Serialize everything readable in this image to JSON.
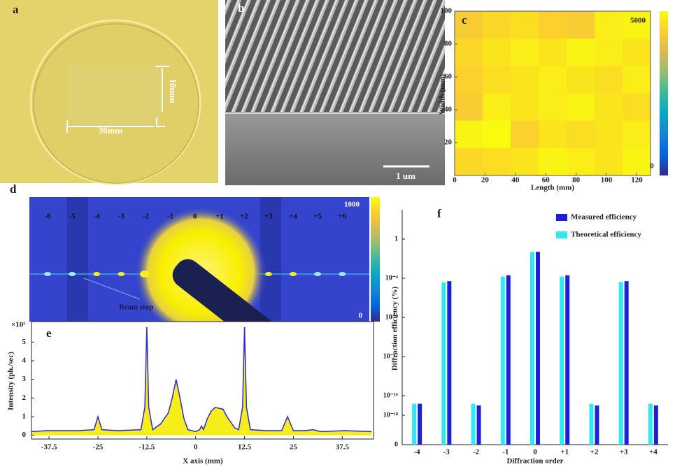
{
  "figure": {
    "a": {
      "label": "a",
      "width_label": "30mm",
      "height_label": "10mm"
    },
    "b": {
      "label": "b",
      "scale_label": "1 um"
    },
    "d": {
      "label": "d",
      "orders": [
        "-6",
        "-5",
        "-4",
        "-3",
        "-2",
        "-1",
        "0",
        "+1",
        "+2",
        "+3",
        "+4",
        "+5",
        "+6"
      ],
      "colorbar_max": "1000",
      "colorbar_min": "0",
      "annotation": "Beam stop"
    }
  },
  "chart_data": [
    {
      "type": "heatmap",
      "title": "c",
      "x_label": "Length (mm)",
      "y_label": "Width (mm)",
      "xlim": [
        0,
        129
      ],
      "ylim": [
        0,
        100
      ],
      "xticks": [
        0,
        20,
        40,
        60,
        80,
        100,
        120
      ],
      "yticks": [
        20,
        40,
        60,
        80,
        100
      ],
      "clim": [
        0,
        5000
      ],
      "colorscale": [
        "#352a87",
        "#0363e1",
        "#1485d4",
        "#06a7c6",
        "#38b99e",
        "#92bf73",
        "#d9ba56",
        "#fcce2e",
        "#f9fb0e"
      ],
      "values": [
        [
          4300,
          4500,
          4600,
          4400,
          4300,
          4800,
          4900
        ],
        [
          4500,
          4700,
          4800,
          4700,
          4900,
          4800,
          4700
        ],
        [
          4400,
          4600,
          4700,
          4800,
          4700,
          4600,
          4800
        ],
        [
          4300,
          4800,
          4700,
          4800,
          4900,
          4700,
          4600
        ],
        [
          4900,
          5000,
          4400,
          4700,
          4600,
          4700,
          4800
        ],
        [
          4500,
          4600,
          4700,
          4900,
          4800,
          4700,
          4900
        ]
      ]
    },
    {
      "type": "area",
      "title": "e",
      "x_label": "X axis (mm)",
      "y_label": "Intensity (ph./sec)",
      "y_multiplier": "×10⁵",
      "xlim": [
        -42,
        45.5
      ],
      "ylim": [
        -0.2,
        6.1
      ],
      "xticks": [
        -37.5,
        -25,
        -12.5,
        0,
        12.5,
        25,
        37.5
      ],
      "yticks": [
        0,
        1,
        2,
        3,
        4,
        5
      ],
      "color": "#2b2bd0",
      "fill_color": "#f5ee1a",
      "x": [
        -42,
        -38,
        -30,
        -26,
        -25,
        -24,
        -20,
        -14,
        -13,
        -12.5,
        -12,
        -11,
        -9,
        -7,
        -6,
        -5,
        -4,
        -3,
        -2,
        -1,
        0,
        1,
        1.5,
        2,
        3,
        4,
        5,
        6,
        7,
        8,
        9,
        10,
        11,
        12,
        12.5,
        13,
        14,
        18,
        22,
        23.5,
        25,
        28,
        30,
        32,
        38,
        45
      ],
      "values": [
        0.2,
        0.25,
        0.25,
        0.3,
        1.0,
        0.3,
        0.25,
        0.3,
        1.5,
        5.8,
        1.5,
        0.3,
        0.6,
        1.2,
        2.0,
        3.0,
        2.0,
        0.9,
        0.3,
        0.25,
        0.2,
        0.3,
        0.5,
        0.3,
        0.9,
        1.3,
        1.5,
        1.45,
        1.4,
        1.0,
        0.7,
        0.4,
        0.3,
        1.5,
        5.8,
        1.5,
        0.3,
        0.25,
        0.25,
        1.0,
        0.25,
        0.25,
        0.3,
        0.2,
        0.25,
        0.2
      ]
    },
    {
      "type": "bar",
      "title": "f",
      "x_label": "Diffraction order",
      "y_label": "Diffraction efficiency (%)",
      "log_scale": true,
      "legend": "upper right",
      "ylim": [
        1e-21,
        1000
      ],
      "yticks": [
        {
          "value": 1e-21,
          "label": "0"
        },
        {
          "value": 1e-18,
          "label": "10⁻¹⁸"
        },
        {
          "value": 1e-16,
          "label": "10⁻¹⁶"
        },
        {
          "value": 1e-12,
          "label": "10⁻¹²"
        },
        {
          "value": 1e-08,
          "label": "10⁻⁸"
        },
        {
          "value": 0.0001,
          "label": "10⁻⁴"
        },
        1
      ],
      "categories": [
        "-4",
        "-3",
        "-2",
        "-1",
        "0",
        "+1",
        "+2",
        "+3",
        "+4"
      ],
      "series": [
        {
          "name": "Measured efficiency",
          "color": "#1f1fd8",
          "values": [
            1.5e-17,
            5e-05,
            1e-17,
            0.0002,
            0.05,
            0.0002,
            1e-17,
            5e-05,
            1e-17
          ]
        },
        {
          "name": "Theoretical efficiency",
          "color": "#2ee8f2",
          "values": [
            1.5e-17,
            4e-05,
            1.5e-17,
            0.00015,
            0.05,
            0.00015,
            1.5e-17,
            4e-05,
            1.5e-17
          ]
        }
      ]
    }
  ]
}
